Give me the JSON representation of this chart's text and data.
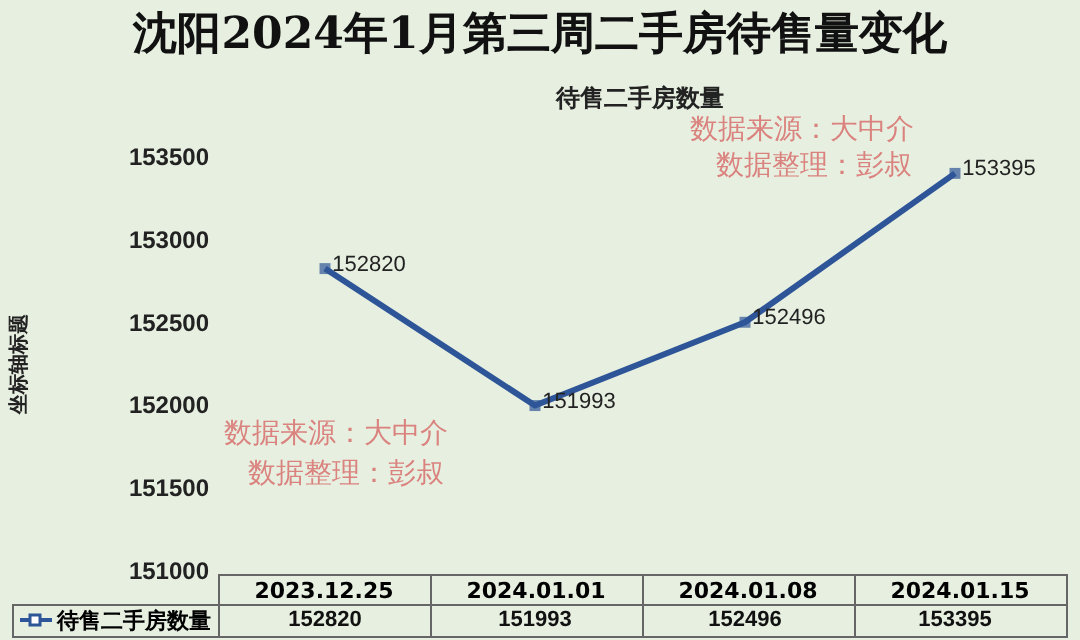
{
  "chart_data": {
    "type": "line",
    "title": "沈阳2024年1月第三周二手房待售量变化",
    "subtitle": "待售二手房数量",
    "ylabel": "坐标轴标题",
    "categories": [
      "2023.12.25",
      "2024.01.01",
      "2024.01.08",
      "2024.01.15"
    ],
    "series": [
      {
        "name": "待售二手房数量",
        "color": "#2e5597",
        "values": [
          152820,
          151993,
          152496,
          153395
        ]
      }
    ],
    "ylim": [
      151000,
      153500
    ],
    "yticks": [
      151000,
      151500,
      152000,
      152500,
      153000,
      153500
    ],
    "legend": "bottom",
    "marker": "square",
    "grid": false,
    "data_labels": true,
    "annotations": [
      "数据来源：大中介",
      "数据整理：彭叔",
      "数据来源：大中介",
      "数据整理：彭叔",
      {
        "text": "152820",
        "x": "2023.12.25",
        "y": 152820
      },
      {
        "text": "151993",
        "x": "2024.01.01",
        "y": 151993
      },
      {
        "text": "152496",
        "x": "2024.01.08",
        "y": 152496
      },
      {
        "text": "153395",
        "x": "2024.01.15",
        "y": 153395
      }
    ]
  }
}
